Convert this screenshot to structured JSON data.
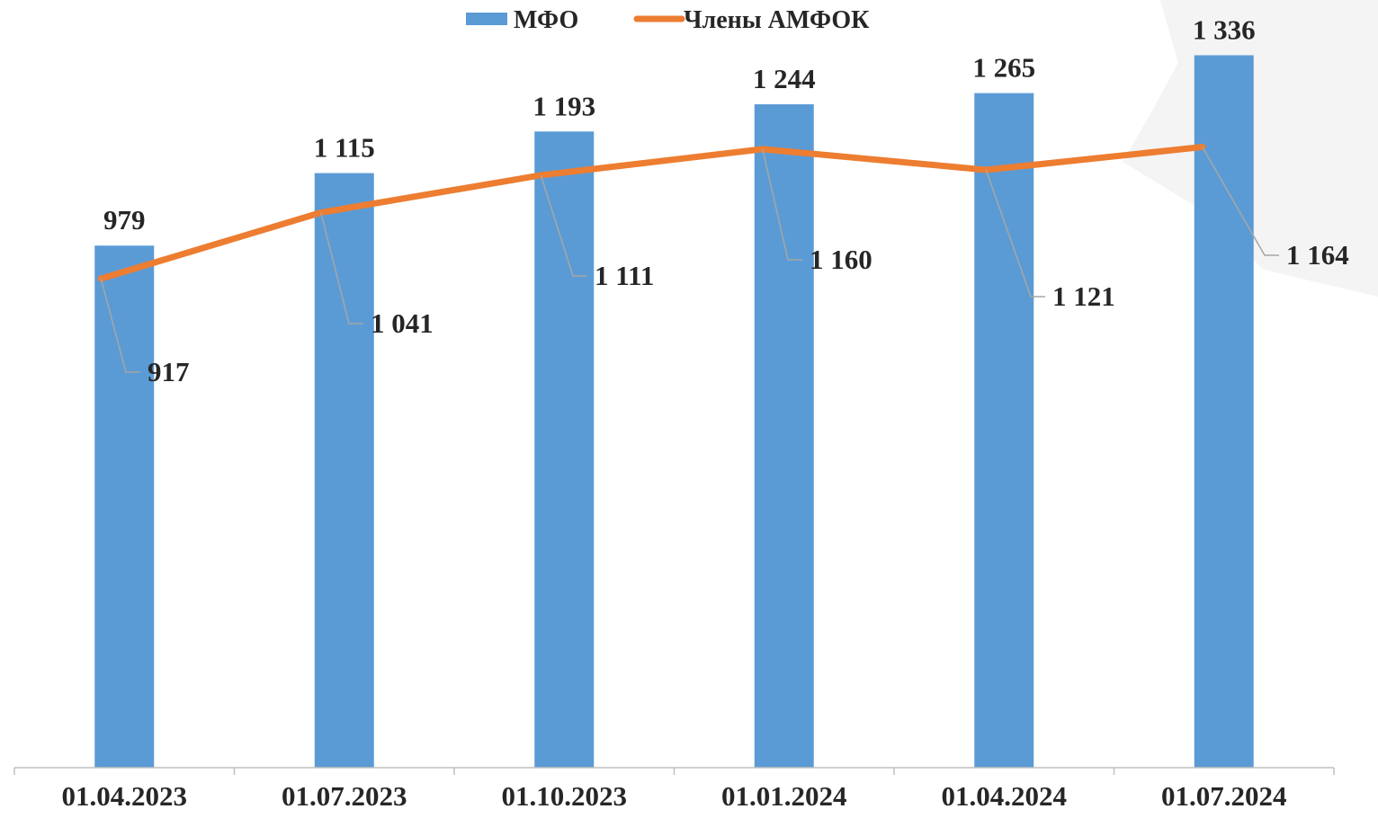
{
  "chart_data": {
    "type": "bar",
    "title": "",
    "xlabel": "",
    "ylabel": "",
    "categories": [
      "01.04.2023",
      "01.07.2023",
      "01.10.2023",
      "01.01.2024",
      "01.04.2024",
      "01.07.2024"
    ],
    "ylim": [
      0,
      1400
    ],
    "grid": false,
    "legend_position": "top-center",
    "series": [
      {
        "name": "МФО",
        "type": "bar",
        "color": "#5B9BD5",
        "values": [
          979,
          1115,
          1193,
          1244,
          1265,
          1336
        ],
        "labels": [
          "979",
          "1 115",
          "1 193",
          "1 244",
          "1 265",
          "1 336"
        ]
      },
      {
        "name": "Члены АМФОК",
        "type": "line",
        "color": "#ED7D31",
        "values": [
          917,
          1041,
          1111,
          1160,
          1121,
          1164
        ],
        "labels": [
          "917",
          "1 041",
          "1 111",
          "1 160",
          "1 121",
          "1 164"
        ]
      }
    ]
  },
  "colors": {
    "text": "#262626",
    "axis": "#bfbfbf",
    "leader": "#a6a6a6",
    "background_shape": "#f2f2f2"
  }
}
